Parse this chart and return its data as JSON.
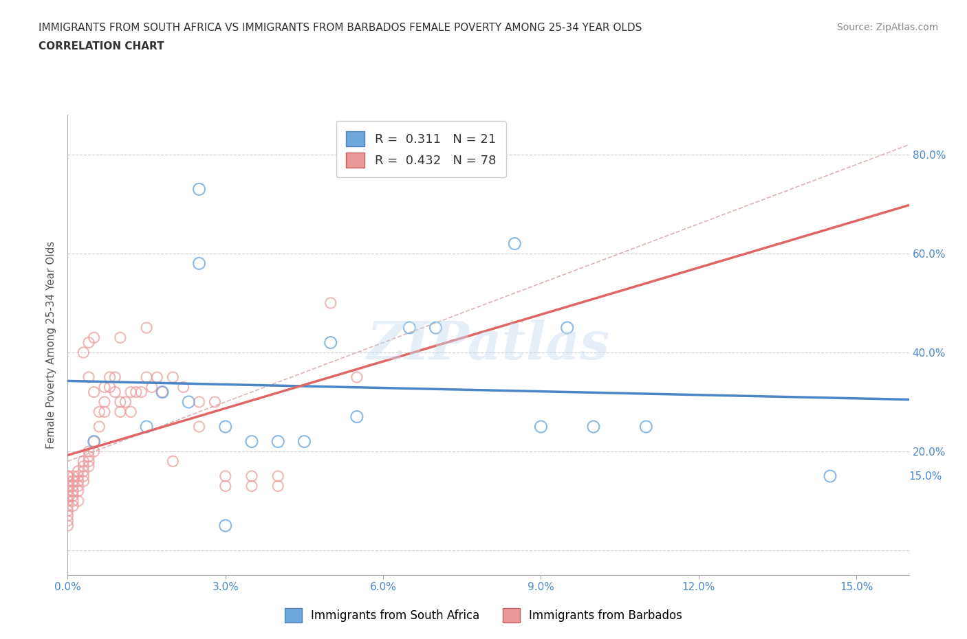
{
  "title_line1": "IMMIGRANTS FROM SOUTH AFRICA VS IMMIGRANTS FROM BARBADOS FEMALE POVERTY AMONG 25-34 YEAR OLDS",
  "title_line2": "CORRELATION CHART",
  "source_text": "Source: ZipAtlas.com",
  "xlabel_ticks": [
    "0.0%",
    "3.0%",
    "6.0%",
    "9.0%",
    "12.0%",
    "15.0%"
  ],
  "xlabel_vals": [
    0.0,
    3.0,
    6.0,
    9.0,
    12.0,
    15.0
  ],
  "ylabel_right_ticks": [
    "80.0%",
    "60.0%",
    "40.0%",
    "20.0%",
    "15.0%"
  ],
  "ylabel_right_vals": [
    80.0,
    60.0,
    40.0,
    20.0,
    15.0
  ],
  "xmin": 0.0,
  "xmax": 16.0,
  "ymin": -5.0,
  "ymax": 88.0,
  "ylabel": "Female Poverty Among 25-34 Year Olds",
  "color_blue": "#6fa8dc",
  "color_pink": "#ea9999",
  "color_blue_line": "#4a86c8",
  "color_pink_line": "#e06666",
  "watermark_text": "ZIPatlas",
  "south_africa_points": [
    [
      0.5,
      22.0
    ],
    [
      1.5,
      25.0
    ],
    [
      1.8,
      32.0
    ],
    [
      2.3,
      30.0
    ],
    [
      2.5,
      58.0
    ],
    [
      3.0,
      25.0
    ],
    [
      3.5,
      22.0
    ],
    [
      4.0,
      22.0
    ],
    [
      4.5,
      22.0
    ],
    [
      5.0,
      42.0
    ],
    [
      5.5,
      27.0
    ],
    [
      6.5,
      45.0
    ],
    [
      8.5,
      62.0
    ],
    [
      9.0,
      25.0
    ],
    [
      9.5,
      45.0
    ],
    [
      10.0,
      25.0
    ],
    [
      11.0,
      25.0
    ],
    [
      2.5,
      73.0
    ],
    [
      14.5,
      15.0
    ],
    [
      3.0,
      5.0
    ],
    [
      7.0,
      45.0
    ]
  ],
  "barbados_points": [
    [
      0.0,
      15.0
    ],
    [
      0.0,
      15.0
    ],
    [
      0.0,
      15.0
    ],
    [
      0.0,
      14.0
    ],
    [
      0.0,
      13.0
    ],
    [
      0.0,
      12.0
    ],
    [
      0.0,
      11.0
    ],
    [
      0.0,
      10.0
    ],
    [
      0.0,
      9.0
    ],
    [
      0.0,
      8.0
    ],
    [
      0.0,
      7.0
    ],
    [
      0.0,
      6.0
    ],
    [
      0.0,
      5.0
    ],
    [
      0.1,
      15.0
    ],
    [
      0.1,
      14.0
    ],
    [
      0.1,
      13.0
    ],
    [
      0.1,
      12.0
    ],
    [
      0.1,
      11.0
    ],
    [
      0.1,
      10.0
    ],
    [
      0.1,
      9.0
    ],
    [
      0.2,
      16.0
    ],
    [
      0.2,
      15.0
    ],
    [
      0.2,
      14.0
    ],
    [
      0.2,
      13.0
    ],
    [
      0.2,
      12.0
    ],
    [
      0.3,
      18.0
    ],
    [
      0.3,
      17.0
    ],
    [
      0.3,
      16.0
    ],
    [
      0.3,
      15.0
    ],
    [
      0.3,
      14.0
    ],
    [
      0.4,
      20.0
    ],
    [
      0.4,
      19.0
    ],
    [
      0.4,
      18.0
    ],
    [
      0.4,
      17.0
    ],
    [
      0.4,
      35.0
    ],
    [
      0.5,
      32.0
    ],
    [
      0.5,
      22.0
    ],
    [
      0.5,
      20.0
    ],
    [
      0.6,
      28.0
    ],
    [
      0.6,
      25.0
    ],
    [
      0.7,
      33.0
    ],
    [
      0.7,
      30.0
    ],
    [
      0.7,
      28.0
    ],
    [
      0.8,
      35.0
    ],
    [
      0.8,
      33.0
    ],
    [
      0.9,
      35.0
    ],
    [
      0.9,
      32.0
    ],
    [
      1.0,
      30.0
    ],
    [
      1.0,
      28.0
    ],
    [
      1.1,
      30.0
    ],
    [
      1.2,
      32.0
    ],
    [
      1.2,
      28.0
    ],
    [
      1.3,
      32.0
    ],
    [
      1.4,
      32.0
    ],
    [
      1.5,
      35.0
    ],
    [
      1.6,
      33.0
    ],
    [
      1.7,
      35.0
    ],
    [
      1.8,
      32.0
    ],
    [
      2.0,
      35.0
    ],
    [
      2.0,
      18.0
    ],
    [
      2.2,
      33.0
    ],
    [
      2.5,
      30.0
    ],
    [
      2.5,
      25.0
    ],
    [
      2.8,
      30.0
    ],
    [
      3.0,
      15.0
    ],
    [
      3.0,
      13.0
    ],
    [
      3.5,
      15.0
    ],
    [
      3.5,
      13.0
    ],
    [
      4.0,
      15.0
    ],
    [
      4.0,
      13.0
    ],
    [
      5.0,
      50.0
    ],
    [
      5.5,
      35.0
    ],
    [
      0.4,
      42.0
    ],
    [
      0.3,
      40.0
    ],
    [
      0.5,
      43.0
    ],
    [
      1.0,
      43.0
    ],
    [
      1.5,
      45.0
    ],
    [
      0.2,
      10.0
    ]
  ]
}
